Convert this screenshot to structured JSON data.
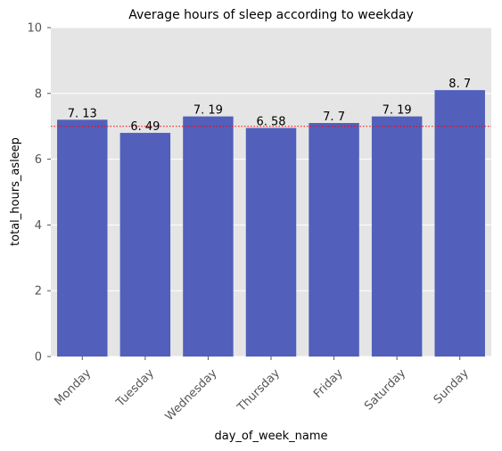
{
  "chart_data": {
    "type": "bar",
    "title": "Average hours of sleep according to weekday",
    "xlabel": "day_of_week_name",
    "ylabel": "total_hours_asleep",
    "categories": [
      "Monday",
      "Tuesday",
      "Wednesday",
      "Thursday",
      "Friday",
      "Saturday",
      "Sunday"
    ],
    "values": [
      7.2,
      6.8,
      7.3,
      6.95,
      7.1,
      7.3,
      8.1
    ],
    "data_labels": [
      "7. 13",
      "6. 49",
      "7. 19",
      "6. 58",
      "7. 7",
      "7. 19",
      "8. 7"
    ],
    "reference_line": {
      "y": 7.0,
      "color": "#ff0000",
      "style": "dotted"
    },
    "ylim": [
      0,
      10
    ],
    "yticks": [
      0,
      2,
      4,
      6,
      8,
      10
    ],
    "grid": true,
    "bar_color": "#525fbb",
    "background_color": "#e5e5e5"
  }
}
